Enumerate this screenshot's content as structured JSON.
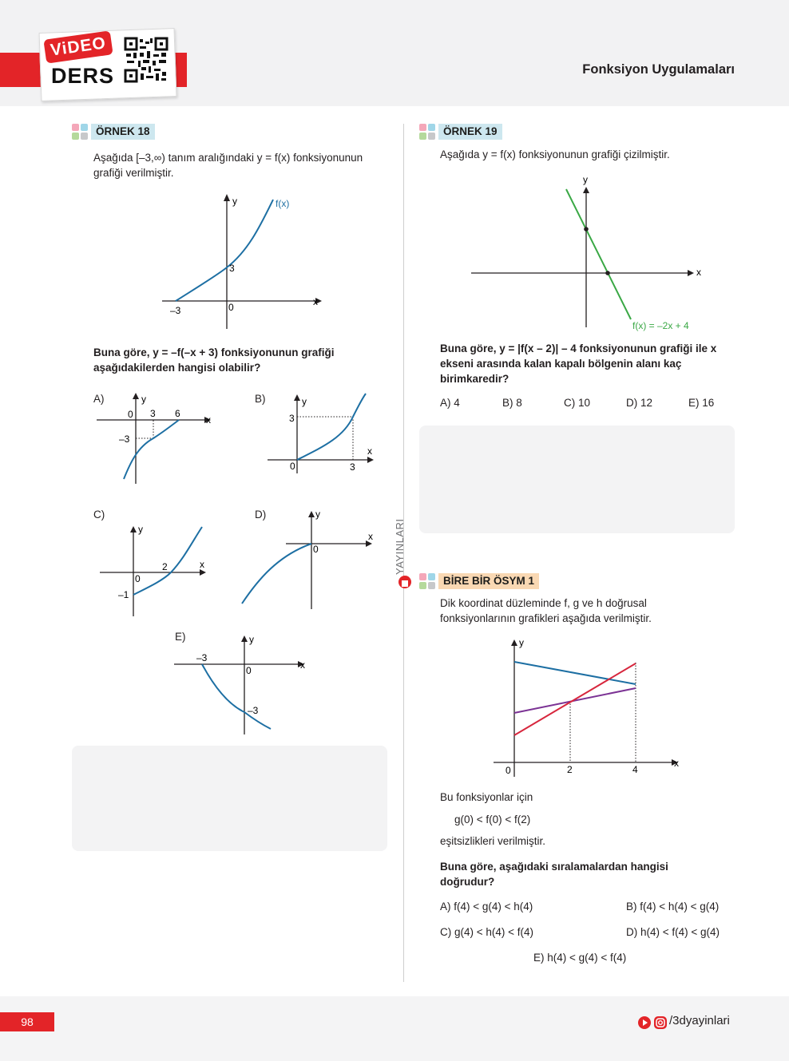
{
  "header": {
    "video_label": "ViDEO",
    "ders_label": "DERS",
    "title": "Fonksiyon Uygulamaları"
  },
  "colors": {
    "accent_red": "#e32428",
    "curve_blue": "#1d6fa3",
    "line_green": "#3aa845",
    "line_purple": "#7b3294",
    "line_red": "#d7263d"
  },
  "ornek18": {
    "tag": "ÖRNEK 18",
    "intro": "Aşağıda [–3,∞) tanım aralığındaki y = f(x) fonksiyonunun grafiği verilmiştir.",
    "graph": {
      "y_label": "y",
      "x_label": "x",
      "curve_label": "f(x)",
      "y_tick": "3",
      "x_tick": "–3",
      "origin": "0"
    },
    "question": "Buna göre, y = –f(–x + 3) fonksiyonunun grafiği aşağıdakilerden hangisi olabilir?",
    "options": {
      "A": {
        "label": "A)",
        "y": "y",
        "x": "x",
        "t1": "0",
        "t2": "3",
        "t3": "6",
        "t4": "–3"
      },
      "B": {
        "label": "B)",
        "y": "y",
        "x": "x",
        "t1": "3",
        "t2": "0",
        "t3": "3"
      },
      "C": {
        "label": "C)",
        "y": "y",
        "x": "x",
        "t1": "0",
        "t2": "2",
        "t3": "–1"
      },
      "D": {
        "label": "D)",
        "y": "y",
        "x": "x",
        "t1": "0"
      },
      "E": {
        "label": "E)",
        "y": "y",
        "x": "x",
        "t1": "–3",
        "t2": "0",
        "t3": "–3"
      }
    }
  },
  "ornek19": {
    "tag": "ÖRNEK 19",
    "intro": "Aşağıda y = f(x) fonksiyonunun grafiği çizilmiştir.",
    "graph": {
      "y_label": "y",
      "x_label": "x",
      "line_label": "f(x) = –2x + 4"
    },
    "question": "Buna göre, y = |f(x – 2)| – 4 fonksiyonunun grafiği ile x ekseni arasında kalan kapalı bölgenin alanı  kaç birimkaredir?",
    "options": [
      "A) 4",
      "B) 8",
      "C) 10",
      "D) 12",
      "E) 16"
    ]
  },
  "side_label": "YAYINLARI",
  "osym": {
    "tag": "BİRE BİR ÖSYM 1",
    "intro": "Dik koordinat düzleminde f, g ve h doğrusal fonksiyonlarının grafikleri aşağıda verilmiştir.",
    "graph": {
      "y_label": "y",
      "x_label": "x",
      "t0": "0",
      "t2": "2",
      "t4": "4"
    },
    "line1": "Bu fonksiyonlar için",
    "inequality": "g(0) < f(0) < f(2)",
    "line2": "eşitsizlikleri verilmiştir.",
    "question": "Buna göre, aşağıdaki sıralamalardan hangisi doğrudur?",
    "options": [
      "A) f(4) < g(4) < h(4)",
      "B) f(4) < h(4) < g(4)",
      "C) g(4) < h(4) < f(4)",
      "D) h(4) < f(4) < g(4)",
      "E) h(4) < g(4) < f(4)"
    ]
  },
  "footer": {
    "page": "98",
    "social": "/3dyayinlari"
  }
}
